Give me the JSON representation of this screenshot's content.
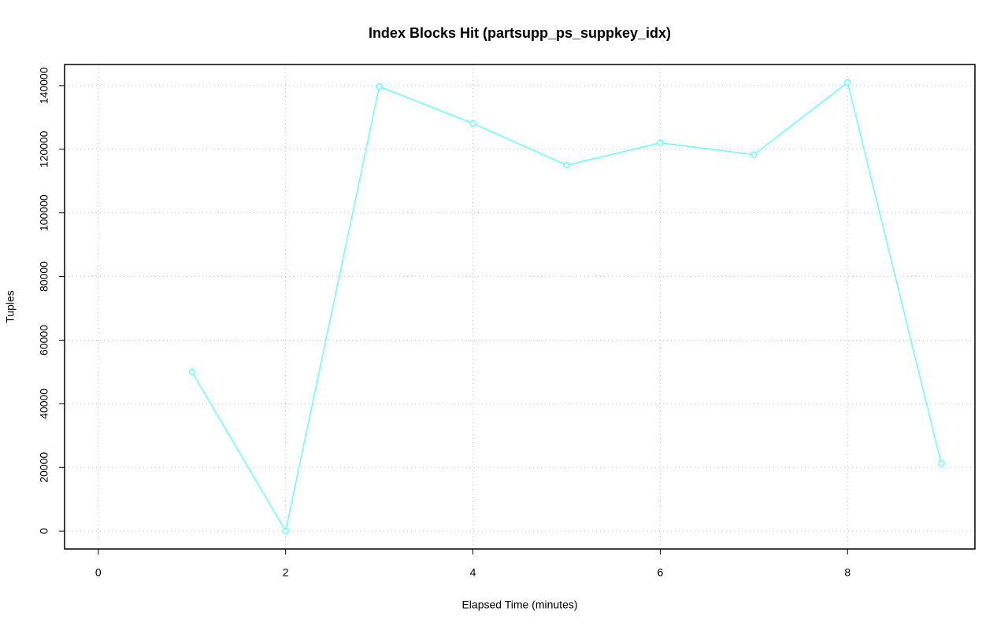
{
  "chart_data": {
    "type": "line",
    "title": "Index Blocks Hit (partsupp_ps_suppkey_idx)",
    "x_label": "Elapsed Time (minutes)",
    "y_label": "Tuples",
    "x": [
      1,
      2,
      3,
      4,
      5,
      6,
      7,
      8,
      9
    ],
    "values": [
      50000,
      0,
      139700,
      128100,
      115000,
      122000,
      118300,
      141000,
      21200
    ],
    "color": "#66ffff",
    "xlim": [
      -0.36,
      9.36
    ],
    "xticks": [
      0,
      2,
      4,
      6,
      8
    ],
    "ylim": [
      -5640,
      146640
    ],
    "yticks": [
      0,
      20000,
      40000,
      60000,
      80000,
      100000,
      120000,
      140000
    ],
    "grid": true
  }
}
